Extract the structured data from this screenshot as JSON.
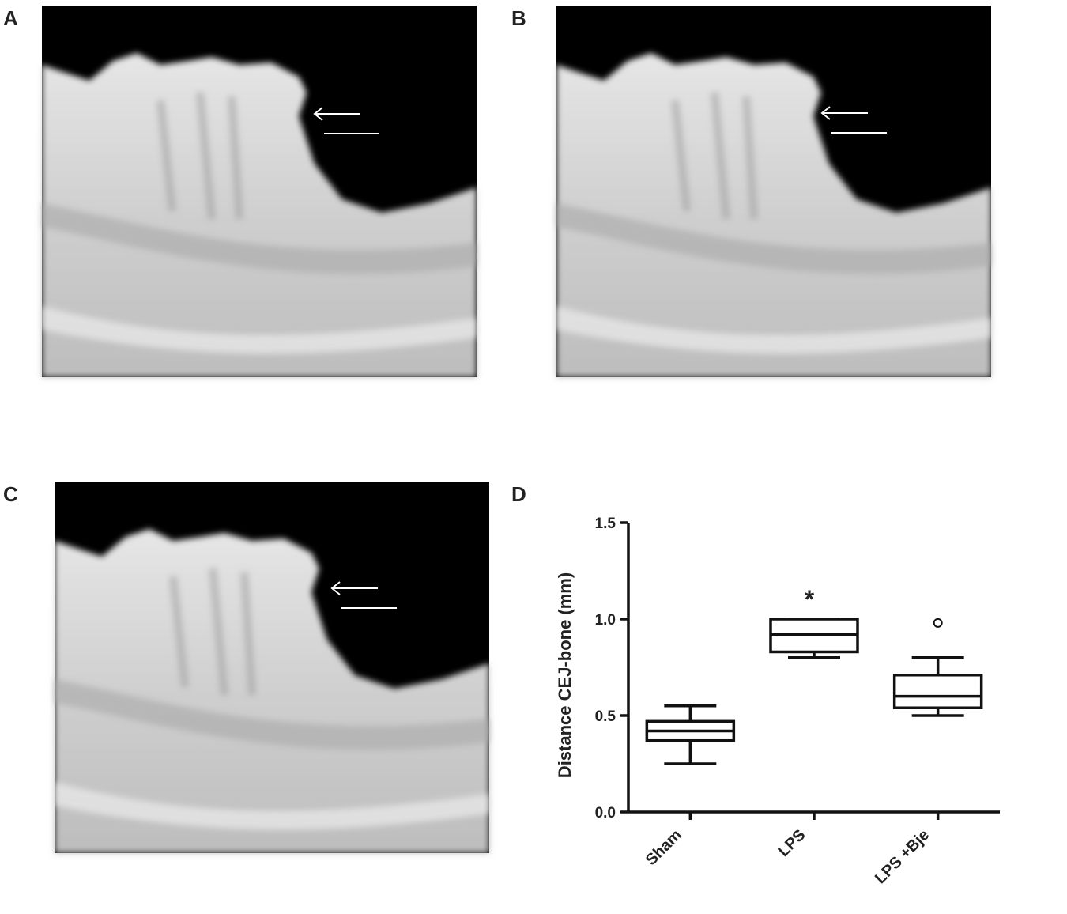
{
  "panels": [
    {
      "label": "A"
    },
    {
      "label": "B"
    },
    {
      "label": "C"
    },
    {
      "label": "D"
    }
  ],
  "chart_data": {
    "type": "box",
    "ylabel": "Distance CEJ-bone (mm)",
    "categories": [
      "Sham",
      "LPS",
      "LPS +Bje"
    ],
    "min": [
      0.25,
      0.8,
      0.5
    ],
    "q1": [
      0.37,
      0.83,
      0.54
    ],
    "median": [
      0.42,
      0.92,
      0.6
    ],
    "q3": [
      0.47,
      1.0,
      0.71
    ],
    "max": [
      0.55,
      1.0,
      0.8
    ],
    "outliers": [
      [],
      [],
      [
        0.98
      ]
    ],
    "annotations": [
      {
        "text": "*",
        "category": "LPS"
      }
    ],
    "color": "#111111",
    "ylim": [
      0,
      1.5
    ],
    "yticks": [
      {
        "value": 0,
        "label": "0.0"
      },
      {
        "value": 0.5,
        "label": "0.5"
      },
      {
        "value": 1.0,
        "label": "1.0"
      },
      {
        "value": 1.5,
        "label": "1.5"
      }
    ]
  }
}
